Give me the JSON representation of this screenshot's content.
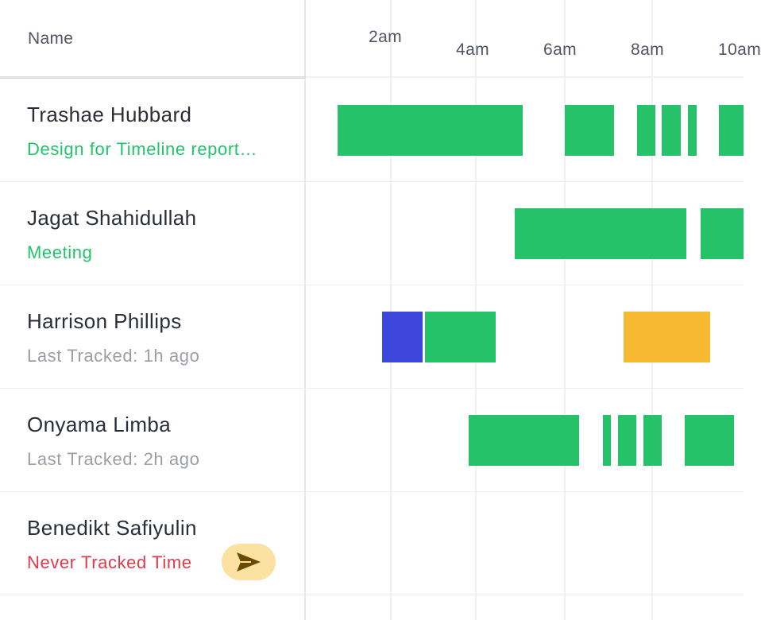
{
  "header": {
    "name_label": "Name"
  },
  "timeline": {
    "ticks": [
      "2am",
      "4am",
      "6am",
      "8am",
      "10am"
    ]
  },
  "colors": {
    "tracked": "#26c26a",
    "blue": "#3d47dc",
    "yellow": "#f6b931",
    "send_button_bg": "#fbe2a2",
    "send_icon": "#6b4a00"
  },
  "users": [
    {
      "name": "Trashae Hubbard",
      "status": "Design for Timeline report…",
      "status_type": "green"
    },
    {
      "name": "Jagat Shahidullah",
      "status": "Meeting",
      "status_type": "green"
    },
    {
      "name": "Harrison Phillips",
      "status": "Last Tracked: 1h ago",
      "status_type": "gray"
    },
    {
      "name": "Onyama Limba",
      "status": "Last Tracked: 2h ago",
      "status_type": "gray"
    },
    {
      "name": "Benedikt Safiyulin",
      "status": "Never Tracked Time",
      "status_type": "red"
    }
  ],
  "send_button": {
    "icon": "send-icon"
  }
}
